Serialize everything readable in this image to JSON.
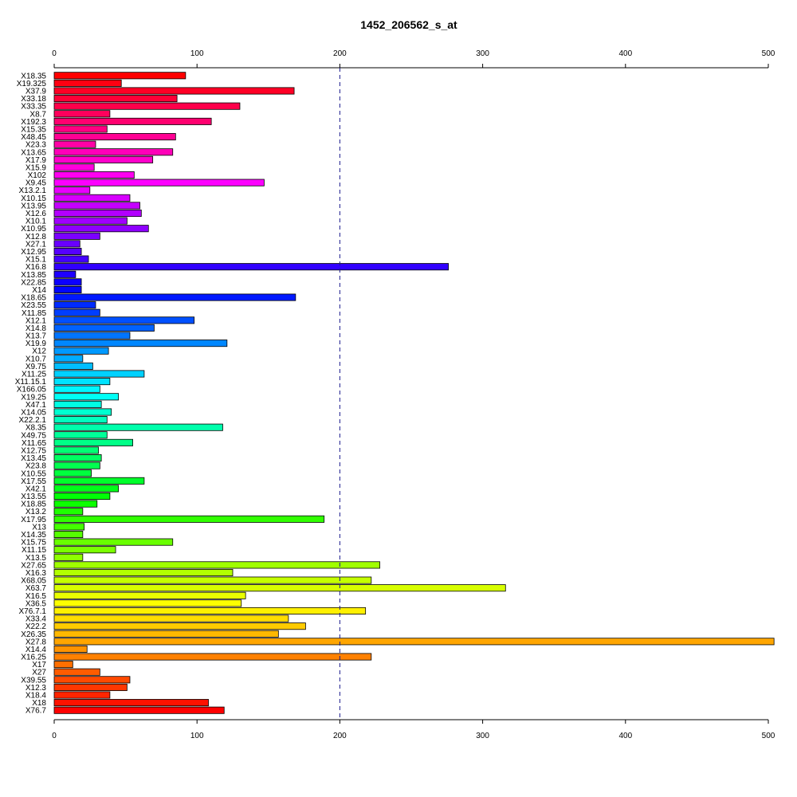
{
  "chart_data": {
    "type": "bar",
    "orientation": "horizontal",
    "title": "1452_206562_s_at",
    "xlabel": "",
    "ylabel": "",
    "xlim": [
      0,
      500
    ],
    "x_ticks": [
      0,
      100,
      200,
      300,
      400,
      500
    ],
    "reference_line": {
      "value": 200,
      "style": "dashed",
      "color": "#1a1a8c"
    },
    "axes_positions": [
      "top",
      "bottom"
    ],
    "grid": false,
    "colors": "rainbow gradient (red → magenta → blue → cyan → green → yellow → orange → red)",
    "categories": [
      "X18.35",
      "X19.325",
      "X37.9",
      "X33.18",
      "X33.35",
      "X8.7",
      "X192.3",
      "X15.35",
      "X48.45",
      "X23.3",
      "X13.65",
      "X17.9",
      "X15.9",
      "X102",
      "X9.45",
      "X13.2.1",
      "X10.15",
      "X13.95",
      "X12.6",
      "X10.1",
      "X10.95",
      "X12.8",
      "X27.1",
      "X12.95",
      "X15.1",
      "X16.8",
      "X13.85",
      "X22.85",
      "X14",
      "X18.65",
      "X23.55",
      "X11.85",
      "X12.1",
      "X14.8",
      "X13.7",
      "X19.9",
      "X12",
      "X10.7",
      "X9.75",
      "X11.25",
      "X11.15.1",
      "X166.05",
      "X19.25",
      "X47.1",
      "X14.05",
      "X22.2.1",
      "X8.35",
      "X49.75",
      "X11.65",
      "X12.75",
      "X13.45",
      "X23.8",
      "X10.55",
      "X17.55",
      "X42.1",
      "X13.55",
      "X18.85",
      "X13.2",
      "X17.95",
      "X13",
      "X14.35",
      "X15.75",
      "X11.15",
      "X13.5",
      "X27.65",
      "X16.3",
      "X68.05",
      "X63.7",
      "X16.5",
      "X36.5",
      "X76.7.1",
      "X33.4",
      "X22.2",
      "X26.35",
      "X27.8",
      "X14.4",
      "X16.25",
      "X17",
      "X27",
      "X39.55",
      "X12.3",
      "X18.4",
      "X18",
      "X76.7"
    ],
    "values": [
      92,
      47,
      168,
      86,
      130,
      39,
      110,
      37,
      85,
      29,
      83,
      69,
      28,
      56,
      147,
      25,
      53,
      60,
      61,
      51,
      66,
      32,
      18,
      19,
      24,
      276,
      15,
      19,
      19,
      169,
      29,
      32,
      98,
      70,
      53,
      121,
      38,
      20,
      27,
      63,
      39,
      32,
      45,
      33,
      40,
      37,
      118,
      37,
      55,
      31,
      33,
      32,
      26,
      63,
      45,
      39,
      30,
      20,
      189,
      21,
      20,
      83,
      43,
      20,
      228,
      125,
      222,
      316,
      134,
      131,
      218,
      164,
      176,
      157,
      504,
      23,
      222,
      13,
      32,
      53,
      51,
      39,
      108,
      119
    ]
  }
}
